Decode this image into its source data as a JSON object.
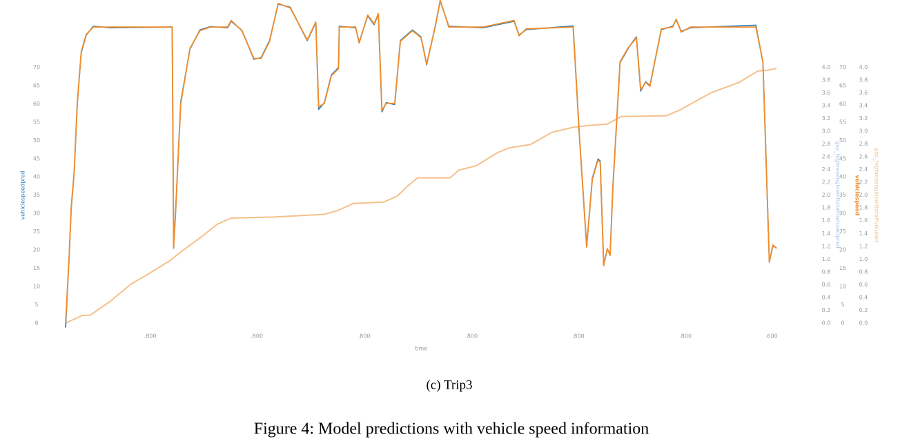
{
  "chart_data": {
    "type": "line",
    "x_label": "time",
    "y_label": "vehiclespeedpred",
    "y_label_right": "vehiclespeed",
    "y2_label": "gsp_highresengineoiltotalfuelusedpred",
    "y3_label": "gsp_highresengineoiltotalfuelused",
    "subcaption": "(c) Trip3",
    "caption": "Figure 4: Model predictions with vehicle speed information",
    "xlim": [
      0,
      100
    ],
    "ylim": [
      0,
      88.4
    ],
    "y2lim": [
      0,
      5.05
    ],
    "xticks": [
      {
        "value": 11.9,
        "label": ".800"
      },
      {
        "value": 26.9,
        "label": ".800"
      },
      {
        "value": 42.0,
        "label": ".800"
      },
      {
        "value": 57.1,
        "label": ".800"
      },
      {
        "value": 72.1,
        "label": ".800"
      },
      {
        "value": 87.2,
        "label": ".800"
      },
      {
        "value": 99.3,
        "label": ".600"
      }
    ],
    "yticks": [
      0,
      5,
      10,
      15,
      20,
      25,
      30,
      35,
      40,
      45,
      50,
      55,
      60,
      65,
      70
    ],
    "y2ticks": [
      {
        "value": 0,
        "label": "0.0"
      },
      {
        "value": 0.2,
        "label": "0.2"
      },
      {
        "value": 0.4,
        "label": "0.4"
      },
      {
        "value": 0.6,
        "label": "0.6"
      },
      {
        "value": 0.8,
        "label": "0.8"
      },
      {
        "value": 1,
        "label": "1.0"
      },
      {
        "value": 1.2,
        "label": "1.2"
      },
      {
        "value": 1.4,
        "label": "1.4"
      },
      {
        "value": 1.6,
        "label": "1.6"
      },
      {
        "value": 1.8,
        "label": "1.8"
      },
      {
        "value": 2,
        "label": "2.0"
      },
      {
        "value": 2.2,
        "label": "2.2"
      },
      {
        "value": 2.4,
        "label": "2.4"
      },
      {
        "value": 2.6,
        "label": "2.6"
      },
      {
        "value": 2.8,
        "label": "2.8"
      },
      {
        "value": 3,
        "label": "3.0"
      },
      {
        "value": 3.2,
        "label": "3.2"
      },
      {
        "value": 3.4,
        "label": "3.4"
      },
      {
        "value": 3.6,
        "label": "3.6"
      },
      {
        "value": 3.8,
        "label": "3.8"
      },
      {
        "value": 4,
        "label": "4.0"
      }
    ],
    "series": [
      {
        "name": "vehiclespeedpred",
        "color": "#2f7fc1",
        "x": [
          0,
          0.5,
          0.8,
          1.2,
          1.65,
          2.2,
          2.9,
          3.9,
          6.3,
          15,
          15.2,
          15.5,
          16.2,
          17.5,
          18.9,
          20.4,
          22.8,
          23.3,
          24.8,
          26.5,
          27.5,
          28.7,
          29.9,
          31.6,
          34,
          35.2,
          35.6,
          36.4,
          37.4,
          38.4,
          38.5,
          40.8,
          41.3,
          42.5,
          43.4,
          44,
          44.5,
          45.1,
          46.3,
          47.1,
          48.8,
          50,
          50.8,
          52,
          52.7,
          53.9,
          58.7,
          63.1,
          63.8,
          64.8,
          71.4,
          72.3,
          73.3,
          74.1,
          74.9,
          75.2,
          75.7,
          76.2,
          76.6,
          77,
          78,
          79.1,
          79.9,
          80.3,
          80.9,
          81.6,
          82.2,
          83.8,
          85.4,
          85.9,
          86.6,
          87.9,
          97.1,
          98.1,
          99,
          99.5,
          100
        ],
        "values": [
          -1.2,
          18.3,
          31.5,
          41,
          60.3,
          74,
          78.8,
          81.2,
          80.8,
          81,
          20.6,
          31.5,
          60.5,
          75,
          80.2,
          81.1,
          80.8,
          82.6,
          80.1,
          72.2,
          72.6,
          77.3,
          87.3,
          86.4,
          77.3,
          82.2,
          58.5,
          60.3,
          67.9,
          69.9,
          81.2,
          80.8,
          76.8,
          84.1,
          81.7,
          84.5,
          57.8,
          60.3,
          59.8,
          77.3,
          80.2,
          78.3,
          70.7,
          81.2,
          88.2,
          81.2,
          80.8,
          82.6,
          78.8,
          80.3,
          81.3,
          50.5,
          21,
          39.6,
          44.9,
          44.3,
          15.9,
          20.2,
          18.7,
          37.6,
          71.3,
          75,
          77.3,
          78.3,
          63.5,
          66,
          65,
          80.3,
          81.2,
          83,
          79.8,
          80.8,
          81.5,
          71.3,
          16.8,
          21.1,
          20.6
        ]
      },
      {
        "name": "vehiclespeed",
        "color": "#f28e2b",
        "x": [
          0,
          0.5,
          0.8,
          1.2,
          1.65,
          2.2,
          2.9,
          3.9,
          6.3,
          15,
          15.2,
          15.5,
          16.2,
          17.5,
          18.9,
          20.4,
          22.8,
          23.3,
          24.8,
          26.5,
          27.5,
          28.7,
          29.9,
          31.6,
          34,
          35.2,
          35.6,
          36.4,
          37.4,
          38.4,
          38.5,
          40.8,
          41.3,
          42.5,
          43.4,
          44,
          44.5,
          45.1,
          46.3,
          47.1,
          48.8,
          50,
          50.8,
          52,
          52.7,
          53.9,
          58.7,
          63.1,
          63.8,
          64.8,
          71.4,
          72.3,
          73.3,
          74.1,
          74.9,
          75.2,
          75.7,
          76.2,
          76.6,
          77,
          78,
          79.1,
          79.9,
          80.3,
          80.9,
          81.6,
          82.2,
          83.8,
          85.4,
          85.9,
          86.6,
          87.9,
          97.1,
          98.1,
          99,
          99.5,
          100
        ],
        "values": [
          0,
          18.1,
          31.8,
          41.2,
          60,
          74.3,
          79,
          81,
          81,
          81,
          20.4,
          31.8,
          60,
          75.2,
          80,
          81,
          81,
          82.8,
          80,
          72.4,
          72.4,
          77.1,
          87.5,
          86.2,
          77.5,
          82.4,
          59.2,
          60.1,
          67.7,
          69.6,
          81,
          81,
          76.6,
          84.3,
          81.9,
          84.7,
          58.2,
          60.1,
          60.1,
          77.1,
          80,
          78.1,
          70.9,
          81,
          88.4,
          81,
          81,
          82.8,
          78.6,
          80.5,
          81,
          50.7,
          20.8,
          39.3,
          44.6,
          44,
          15.7,
          20.4,
          18.5,
          37.4,
          71.5,
          75.2,
          77.1,
          78.1,
          63.9,
          65.8,
          64.8,
          80.5,
          81,
          83.2,
          79.6,
          81,
          81,
          71.5,
          16.6,
          21.4,
          20.4
        ]
      },
      {
        "name": "gsp_highresengineoiltotalfuelused",
        "color": "#f5c08a",
        "axis": "y2",
        "x": [
          0,
          2.4,
          3.4,
          6.3,
          9.2,
          11.7,
          14.6,
          16.2,
          18.9,
          21.4,
          23.3,
          29.6,
          36.4,
          38.3,
          40.5,
          44.7,
          46.6,
          48.1,
          49.5,
          51.5,
          54.1,
          55.3,
          57.8,
          60.7,
          62.4,
          65.4,
          68.4,
          71.4,
          73.8,
          76.2,
          78.2,
          84.5,
          86.4,
          90.8,
          94.7,
          97.4,
          98.7,
          100
        ],
        "values": [
          0,
          0.12,
          0.12,
          0.34,
          0.61,
          0.77,
          0.97,
          1.11,
          1.33,
          1.55,
          1.64,
          1.66,
          1.7,
          1.76,
          1.87,
          1.89,
          1.98,
          2.14,
          2.27,
          2.27,
          2.27,
          2.39,
          2.46,
          2.66,
          2.74,
          2.79,
          2.98,
          3.06,
          3.09,
          3.11,
          3.23,
          3.24,
          3.33,
          3.6,
          3.76,
          3.94,
          3.95,
          3.98
        ]
      }
    ]
  }
}
